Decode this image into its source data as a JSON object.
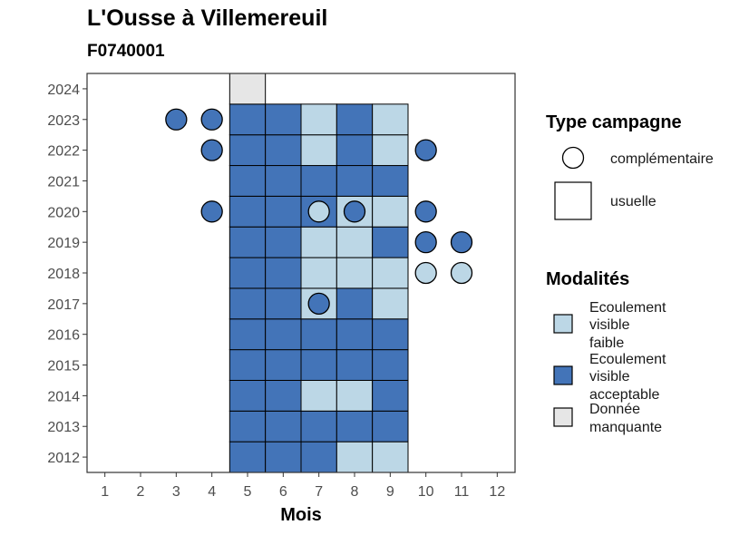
{
  "chart_data": {
    "type": "heatmap",
    "title": "L'Ousse à Villemereuil",
    "subtitle": "F0740001",
    "xlabel": "Mois",
    "ylabel": "",
    "x_ticks": [
      "1",
      "2",
      "3",
      "4",
      "5",
      "6",
      "7",
      "8",
      "9",
      "10",
      "11",
      "12"
    ],
    "y_ticks": [
      "2012",
      "2013",
      "2014",
      "2015",
      "2016",
      "2017",
      "2018",
      "2019",
      "2020",
      "2021",
      "2022",
      "2023",
      "2024"
    ],
    "xlim": [
      0.5,
      12.5
    ],
    "ylim": [
      2011.5,
      2024.5
    ],
    "colors": {
      "Ecoulement visible faible": "#bcd7e6",
      "Ecoulement visible acceptable": "#4374b8",
      "Donnée manquante": "#e6e6e6"
    },
    "usuelle": [
      {
        "year": 2012,
        "month": 5,
        "m": "Ecoulement visible acceptable"
      },
      {
        "year": 2012,
        "month": 6,
        "m": "Ecoulement visible acceptable"
      },
      {
        "year": 2012,
        "month": 7,
        "m": "Ecoulement visible acceptable"
      },
      {
        "year": 2012,
        "month": 8,
        "m": "Ecoulement visible faible"
      },
      {
        "year": 2012,
        "month": 9,
        "m": "Ecoulement visible faible"
      },
      {
        "year": 2013,
        "month": 5,
        "m": "Ecoulement visible acceptable"
      },
      {
        "year": 2013,
        "month": 6,
        "m": "Ecoulement visible acceptable"
      },
      {
        "year": 2013,
        "month": 7,
        "m": "Ecoulement visible acceptable"
      },
      {
        "year": 2013,
        "month": 8,
        "m": "Ecoulement visible acceptable"
      },
      {
        "year": 2013,
        "month": 9,
        "m": "Ecoulement visible acceptable"
      },
      {
        "year": 2014,
        "month": 5,
        "m": "Ecoulement visible acceptable"
      },
      {
        "year": 2014,
        "month": 6,
        "m": "Ecoulement visible acceptable"
      },
      {
        "year": 2014,
        "month": 7,
        "m": "Ecoulement visible faible"
      },
      {
        "year": 2014,
        "month": 8,
        "m": "Ecoulement visible faible"
      },
      {
        "year": 2014,
        "month": 9,
        "m": "Ecoulement visible acceptable"
      },
      {
        "year": 2015,
        "month": 5,
        "m": "Ecoulement visible acceptable"
      },
      {
        "year": 2015,
        "month": 6,
        "m": "Ecoulement visible acceptable"
      },
      {
        "year": 2015,
        "month": 7,
        "m": "Ecoulement visible acceptable"
      },
      {
        "year": 2015,
        "month": 8,
        "m": "Ecoulement visible acceptable"
      },
      {
        "year": 2015,
        "month": 9,
        "m": "Ecoulement visible acceptable"
      },
      {
        "year": 2016,
        "month": 5,
        "m": "Ecoulement visible acceptable"
      },
      {
        "year": 2016,
        "month": 6,
        "m": "Ecoulement visible acceptable"
      },
      {
        "year": 2016,
        "month": 7,
        "m": "Ecoulement visible acceptable"
      },
      {
        "year": 2016,
        "month": 8,
        "m": "Ecoulement visible acceptable"
      },
      {
        "year": 2016,
        "month": 9,
        "m": "Ecoulement visible acceptable"
      },
      {
        "year": 2017,
        "month": 5,
        "m": "Ecoulement visible acceptable"
      },
      {
        "year": 2017,
        "month": 6,
        "m": "Ecoulement visible acceptable"
      },
      {
        "year": 2017,
        "month": 7,
        "m": "Ecoulement visible faible"
      },
      {
        "year": 2017,
        "month": 8,
        "m": "Ecoulement visible acceptable"
      },
      {
        "year": 2017,
        "month": 9,
        "m": "Ecoulement visible faible"
      },
      {
        "year": 2018,
        "month": 5,
        "m": "Ecoulement visible acceptable"
      },
      {
        "year": 2018,
        "month": 6,
        "m": "Ecoulement visible acceptable"
      },
      {
        "year": 2018,
        "month": 7,
        "m": "Ecoulement visible faible"
      },
      {
        "year": 2018,
        "month": 8,
        "m": "Ecoulement visible faible"
      },
      {
        "year": 2018,
        "month": 9,
        "m": "Ecoulement visible faible"
      },
      {
        "year": 2019,
        "month": 5,
        "m": "Ecoulement visible acceptable"
      },
      {
        "year": 2019,
        "month": 6,
        "m": "Ecoulement visible acceptable"
      },
      {
        "year": 2019,
        "month": 7,
        "m": "Ecoulement visible faible"
      },
      {
        "year": 2019,
        "month": 8,
        "m": "Ecoulement visible faible"
      },
      {
        "year": 2019,
        "month": 9,
        "m": "Ecoulement visible acceptable"
      },
      {
        "year": 2020,
        "month": 5,
        "m": "Ecoulement visible acceptable"
      },
      {
        "year": 2020,
        "month": 6,
        "m": "Ecoulement visible acceptable"
      },
      {
        "year": 2020,
        "month": 7,
        "m": "Ecoulement visible acceptable"
      },
      {
        "year": 2020,
        "month": 8,
        "m": "Ecoulement visible faible"
      },
      {
        "year": 2020,
        "month": 9,
        "m": "Ecoulement visible faible"
      },
      {
        "year": 2021,
        "month": 5,
        "m": "Ecoulement visible acceptable"
      },
      {
        "year": 2021,
        "month": 6,
        "m": "Ecoulement visible acceptable"
      },
      {
        "year": 2021,
        "month": 7,
        "m": "Ecoulement visible acceptable"
      },
      {
        "year": 2021,
        "month": 8,
        "m": "Ecoulement visible acceptable"
      },
      {
        "year": 2021,
        "month": 9,
        "m": "Ecoulement visible acceptable"
      },
      {
        "year": 2022,
        "month": 5,
        "m": "Ecoulement visible acceptable"
      },
      {
        "year": 2022,
        "month": 6,
        "m": "Ecoulement visible acceptable"
      },
      {
        "year": 2022,
        "month": 7,
        "m": "Ecoulement visible faible"
      },
      {
        "year": 2022,
        "month": 8,
        "m": "Ecoulement visible acceptable"
      },
      {
        "year": 2022,
        "month": 9,
        "m": "Ecoulement visible faible"
      },
      {
        "year": 2023,
        "month": 5,
        "m": "Ecoulement visible acceptable"
      },
      {
        "year": 2023,
        "month": 6,
        "m": "Ecoulement visible acceptable"
      },
      {
        "year": 2023,
        "month": 7,
        "m": "Ecoulement visible faible"
      },
      {
        "year": 2023,
        "month": 8,
        "m": "Ecoulement visible acceptable"
      },
      {
        "year": 2023,
        "month": 9,
        "m": "Ecoulement visible faible"
      },
      {
        "year": 2024,
        "month": 5,
        "m": "Donnée manquante"
      }
    ],
    "complementaire": [
      {
        "year": 2023,
        "month": 3,
        "m": "Ecoulement visible acceptable"
      },
      {
        "year": 2023,
        "month": 4,
        "m": "Ecoulement visible acceptable"
      },
      {
        "year": 2022,
        "month": 4,
        "m": "Ecoulement visible acceptable"
      },
      {
        "year": 2022,
        "month": 10,
        "m": "Ecoulement visible acceptable"
      },
      {
        "year": 2020,
        "month": 4,
        "m": "Ecoulement visible acceptable"
      },
      {
        "year": 2020,
        "month": 7,
        "m": "Ecoulement visible faible"
      },
      {
        "year": 2020,
        "month": 8,
        "m": "Ecoulement visible acceptable"
      },
      {
        "year": 2020,
        "month": 10,
        "m": "Ecoulement visible acceptable"
      },
      {
        "year": 2019,
        "month": 10,
        "m": "Ecoulement visible acceptable"
      },
      {
        "year": 2019,
        "month": 11,
        "m": "Ecoulement visible acceptable"
      },
      {
        "year": 2018,
        "month": 10,
        "m": "Ecoulement visible faible"
      },
      {
        "year": 2018,
        "month": 11,
        "m": "Ecoulement visible faible"
      },
      {
        "year": 2017,
        "month": 7,
        "m": "Ecoulement visible acceptable"
      }
    ],
    "legend": {
      "placement": "right",
      "type_title": "Type campagne",
      "type_items": [
        "complémentaire",
        "usuelle"
      ],
      "mod_title": "Modalités",
      "mod_items": [
        {
          "key": "Ecoulement visible faible",
          "lines": [
            "Ecoulement",
            "visible",
            "faible"
          ]
        },
        {
          "key": "Ecoulement visible acceptable",
          "lines": [
            "Ecoulement",
            "visible",
            "acceptable"
          ]
        },
        {
          "key": "Donnée manquante",
          "lines": [
            "Donnée",
            "manquante"
          ]
        }
      ]
    }
  }
}
